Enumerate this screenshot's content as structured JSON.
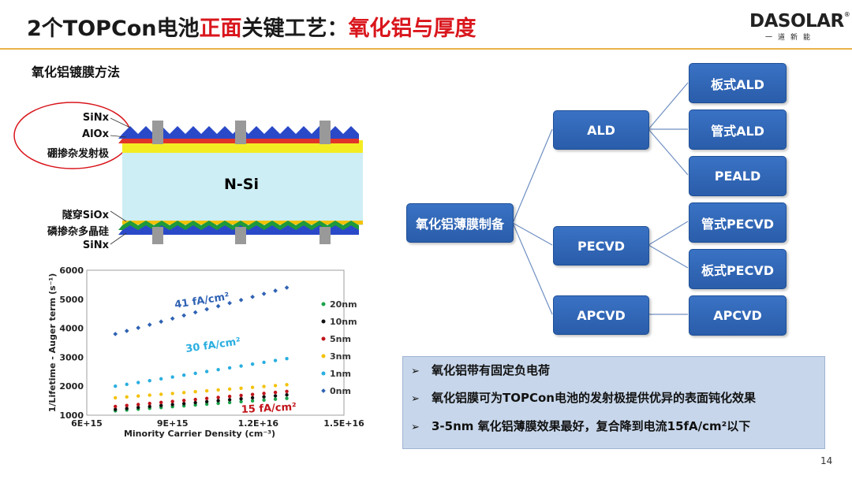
{
  "header": {
    "title_part1": "2个TOPCon电池",
    "title_part2": "正面",
    "title_part3": "关键工艺：",
    "title_part4": "氧化铝与厚度",
    "logo_text": "DASOLAR",
    "logo_mark": "®",
    "logo_sub": "一道新能"
  },
  "section_heading": "氧化铝镀膜方法",
  "cross_section": {
    "top_labels": [
      "SiNx",
      "AlOx",
      "硼掺杂发射极"
    ],
    "center_label": "N-Si",
    "bottom_labels": [
      "隧穿SiOx",
      "磷掺杂多晶硅",
      "SiNx"
    ]
  },
  "chart_data": [
    {
      "type": "scatter",
      "xlabel": "Minority Carrier Density (cm⁻³)",
      "ylabel": "1/Lifetime - Auger term (s⁻¹)",
      "x_tick_labels": [
        "6E+15",
        "9E+15",
        "1.2E+16",
        "1.5E+16"
      ],
      "y_tick_labels": [
        "1000",
        "2000",
        "3000",
        "4000",
        "5000",
        "6000"
      ],
      "xlim": [
        6000000000000000.0,
        1.5e+16
      ],
      "ylim": [
        1000,
        6000
      ],
      "grid": false,
      "legend_position": "right",
      "annotations": [
        "41 fA/cm²",
        "30 fA/cm²",
        "15 fA/cm²"
      ],
      "series": [
        {
          "name": "20nm",
          "color": "#1aa34a",
          "x": [
            7000000000000000.0,
            1.3e+16
          ],
          "y": [
            1150,
            1580
          ]
        },
        {
          "name": "10nm",
          "color": "#111111",
          "x": [
            7000000000000000.0,
            1.3e+16
          ],
          "y": [
            1200,
            1700
          ]
        },
        {
          "name": "5nm",
          "color": "#c0141a",
          "x": [
            7000000000000000.0,
            1.3e+16
          ],
          "y": [
            1300,
            1820
          ]
        },
        {
          "name": "3nm",
          "color": "#f3c20b",
          "x": [
            7000000000000000.0,
            1.3e+16
          ],
          "y": [
            1600,
            2050
          ]
        },
        {
          "name": "1nm",
          "color": "#29aee0",
          "x": [
            7000000000000000.0,
            1.3e+16
          ],
          "y": [
            2000,
            2950
          ]
        },
        {
          "name": "0nm",
          "color": "#2f62b3",
          "x": [
            7000000000000000.0,
            1.3e+16
          ],
          "y": [
            3800,
            5400
          ]
        }
      ]
    }
  ],
  "flow": {
    "root": "氧化铝薄膜制备",
    "methods": [
      "ALD",
      "PECVD",
      "APCVD"
    ],
    "ald_children": [
      "板式ALD",
      "管式ALD",
      "PEALD"
    ],
    "pecvd_children": [
      "管式PECVD",
      "板式PECVD"
    ],
    "apcvd_children": [
      "APCVD"
    ]
  },
  "notes": [
    "氧化铝带有固定负电荷",
    "氧化铝膜可为TOPCon电池的发射极提供优异的表面钝化效果",
    "3-5nm 氧化铝薄膜效果最好，复合降到电流15fA/cm²以下"
  ],
  "page_number": "14",
  "colors": {
    "accent_red": "#d9161c",
    "node_blue": "#2e64b6",
    "rule_gold": "#e9b24a",
    "notes_bg": "#c7d6ea"
  }
}
